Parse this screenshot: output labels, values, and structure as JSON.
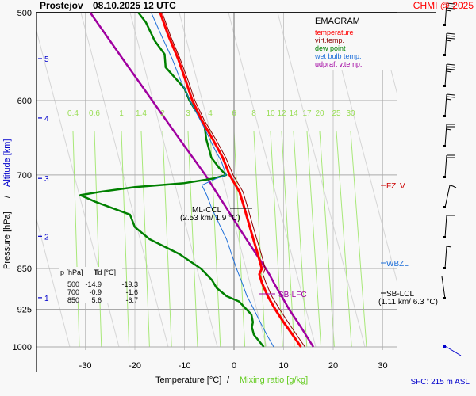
{
  "header": {
    "station": "Prostejov",
    "datetime": "08.10.2025 12 UTC",
    "copyright": "CHMI @ 2025"
  },
  "footer": {
    "sfc": "SFC: 215 m ASL"
  },
  "colors": {
    "temperature": "#ff0000",
    "virt_temp": "#8b0000",
    "dew_point": "#008000",
    "wet_bulb": "#1e6fd9",
    "updraft": "#a000a0",
    "mixing_ratio": "#99e070",
    "altitude": "#0000cc"
  },
  "legend": {
    "title": "EMAGRAM",
    "items": [
      {
        "label": "temperature",
        "color": "#ff0000"
      },
      {
        "label": "virt.temp.",
        "color": "#8b0000"
      },
      {
        "label": "dew point",
        "color": "#008000"
      },
      {
        "label": "wet bulb temp.",
        "color": "#1e6fd9"
      },
      {
        "label": "udpraft v.temp.",
        "color": "#a000a0"
      }
    ]
  },
  "table": {
    "headers": [
      "p [hPa]",
      "T",
      "Td [°C]"
    ],
    "rows": [
      [
        "500",
        "-14.9",
        "-19.3"
      ],
      [
        "700",
        "-0.9",
        "-1.6"
      ],
      [
        "850",
        "5.6",
        "-6.7"
      ]
    ]
  },
  "annotations": {
    "ml_ccl": {
      "label": "ML-CCL",
      "detail": "(2.53 km/ 1.9 °C)"
    },
    "sb_lfc": {
      "label": "SB-LFC"
    },
    "sb_lcl": {
      "label": "SB-LCL",
      "detail": "(1.11 km/ 6.3 °C)"
    },
    "fzlv": {
      "label": "FZLV"
    },
    "wbzl": {
      "label": "WBZL"
    }
  },
  "chart_data": {
    "type": "line",
    "title": "Prostejov 08.10.2025 12 UTC",
    "xlabel": "Temperature [°C]",
    "xlabel2": "Mixing ratio [g/kg]",
    "ylabel": "Pressure [hPa]",
    "ylabel2": "Altitude [km]",
    "xlim": [
      -35,
      32
    ],
    "ylim": [
      1000,
      500
    ],
    "x_ticks": [
      -30,
      -20,
      -10,
      0,
      10,
      20,
      30
    ],
    "y_ticks": [
      500,
      600,
      700,
      850,
      925,
      1000
    ],
    "altitude_ticks": [
      {
        "km": 1,
        "p": 903
      },
      {
        "km": 2,
        "p": 795
      },
      {
        "km": 3,
        "p": 705
      },
      {
        "km": 4,
        "p": 622
      },
      {
        "km": 5,
        "p": 550
      }
    ],
    "mixing_ratio_labels": [
      "0.4",
      "0.6",
      "1",
      "1.4",
      "2",
      "3",
      "4",
      "6",
      "8",
      "10",
      "12",
      "14",
      "17",
      "20",
      "25",
      "30"
    ],
    "grid": true,
    "series": [
      {
        "name": "temperature",
        "points": [
          [
            1000,
            13.5
          ],
          [
            975,
            11.8
          ],
          [
            950,
            10.0
          ],
          [
            925,
            8.3
          ],
          [
            900,
            6.8
          ],
          [
            875,
            5.6
          ],
          [
            860,
            5.1
          ],
          [
            850,
            5.6
          ],
          [
            825,
            4.8
          ],
          [
            800,
            3.9
          ],
          [
            775,
            3.0
          ],
          [
            750,
            2.1
          ],
          [
            725,
            1.1
          ],
          [
            700,
            -0.9
          ],
          [
            675,
            -2.3
          ],
          [
            650,
            -4.3
          ],
          [
            625,
            -6.5
          ],
          [
            600,
            -8.4
          ],
          [
            575,
            -9.8
          ],
          [
            550,
            -11.3
          ],
          [
            525,
            -13.2
          ],
          [
            500,
            -14.9
          ]
        ]
      },
      {
        "name": "virt.temp.",
        "points": [
          [
            1000,
            14.3
          ],
          [
            975,
            12.6
          ],
          [
            950,
            10.9
          ],
          [
            925,
            9.2
          ],
          [
            900,
            7.6
          ],
          [
            875,
            6.4
          ],
          [
            860,
            5.8
          ],
          [
            850,
            6.3
          ],
          [
            825,
            5.5
          ],
          [
            800,
            4.6
          ],
          [
            775,
            3.7
          ],
          [
            750,
            2.8
          ],
          [
            725,
            1.8
          ],
          [
            700,
            -0.2
          ],
          [
            675,
            -1.7
          ],
          [
            650,
            -3.7
          ],
          [
            625,
            -6.0
          ],
          [
            600,
            -7.9
          ],
          [
            575,
            -9.3
          ],
          [
            550,
            -10.9
          ],
          [
            525,
            -12.8
          ],
          [
            500,
            -14.5
          ]
        ]
      },
      {
        "name": "dew point",
        "points": [
          [
            1000,
            6.0
          ],
          [
            975,
            4.0
          ],
          [
            960,
            3.6
          ],
          [
            950,
            3.8
          ],
          [
            935,
            3.5
          ],
          [
            925,
            2.5
          ],
          [
            910,
            1.0
          ],
          [
            900,
            -1.5
          ],
          [
            885,
            -3.5
          ],
          [
            870,
            -4.5
          ],
          [
            850,
            -6.7
          ],
          [
            825,
            -11.0
          ],
          [
            800,
            -17.0
          ],
          [
            780,
            -20.0
          ],
          [
            760,
            -21.0
          ],
          [
            740,
            -28.0
          ],
          [
            730,
            -31.0
          ],
          [
            725,
            -27.0
          ],
          [
            718,
            -20.0
          ],
          [
            712,
            -10.0
          ],
          [
            705,
            -4.0
          ],
          [
            700,
            -1.6
          ],
          [
            690,
            -3.0
          ],
          [
            675,
            -4.6
          ],
          [
            650,
            -5.6
          ],
          [
            630,
            -6.0
          ],
          [
            610,
            -8.0
          ],
          [
            600,
            -9.0
          ],
          [
            585,
            -10.0
          ],
          [
            560,
            -13.8
          ],
          [
            545,
            -14.0
          ],
          [
            530,
            -16.0
          ],
          [
            510,
            -17.8
          ],
          [
            500,
            -19.3
          ]
        ]
      },
      {
        "name": "wet bulb temp.",
        "points": [
          [
            1000,
            8.0
          ],
          [
            975,
            6.6
          ],
          [
            950,
            5.3
          ],
          [
            925,
            4.0
          ],
          [
            900,
            2.6
          ],
          [
            875,
            1.6
          ],
          [
            850,
            0.5
          ],
          [
            825,
            -0.5
          ],
          [
            800,
            -1.5
          ],
          [
            775,
            -3.0
          ],
          [
            750,
            -4.5
          ],
          [
            730,
            -5.5
          ],
          [
            715,
            -6.5
          ],
          [
            705,
            -3.5
          ],
          [
            700,
            -1.6
          ],
          [
            680,
            -2.6
          ],
          [
            660,
            -4.2
          ],
          [
            640,
            -5.6
          ],
          [
            620,
            -7.2
          ],
          [
            600,
            -8.9
          ],
          [
            575,
            -10.8
          ],
          [
            550,
            -12.5
          ],
          [
            525,
            -14.6
          ],
          [
            500,
            -16.7
          ]
        ]
      },
      {
        "name": "udpraft v.temp.",
        "points": [
          [
            1000,
            16.0
          ],
          [
            960,
            13.5
          ],
          [
            925,
            11.1
          ],
          [
            900,
            9.6
          ],
          [
            880,
            8.3
          ],
          [
            860,
            7.1
          ],
          [
            850,
            6.4
          ],
          [
            800,
            2.5
          ],
          [
            750,
            -1.5
          ],
          [
            700,
            -5.8
          ],
          [
            650,
            -11.0
          ],
          [
            600,
            -16.5
          ],
          [
            550,
            -22.5
          ],
          [
            500,
            -29.0
          ]
        ]
      }
    ],
    "wind_barbs": [
      {
        "p": 500,
        "dir": 270,
        "speed_kt": 35
      },
      {
        "p": 550,
        "dir": 260,
        "speed_kt": 35
      },
      {
        "p": 600,
        "dir": 265,
        "speed_kt": 35
      },
      {
        "p": 650,
        "dir": 265,
        "speed_kt": 25
      },
      {
        "p": 700,
        "dir": 265,
        "speed_kt": 25
      },
      {
        "p": 750,
        "dir": 270,
        "speed_kt": 20
      },
      {
        "p": 800,
        "dir": 250,
        "speed_kt": 10
      },
      {
        "p": 850,
        "dir": 270,
        "speed_kt": 10
      },
      {
        "p": 900,
        "dir": 270,
        "speed_kt": 5
      },
      {
        "p": 950,
        "dir": 350,
        "speed_kt": 0
      },
      {
        "p": 1000,
        "dir": 300,
        "speed_kt": 0
      }
    ]
  }
}
